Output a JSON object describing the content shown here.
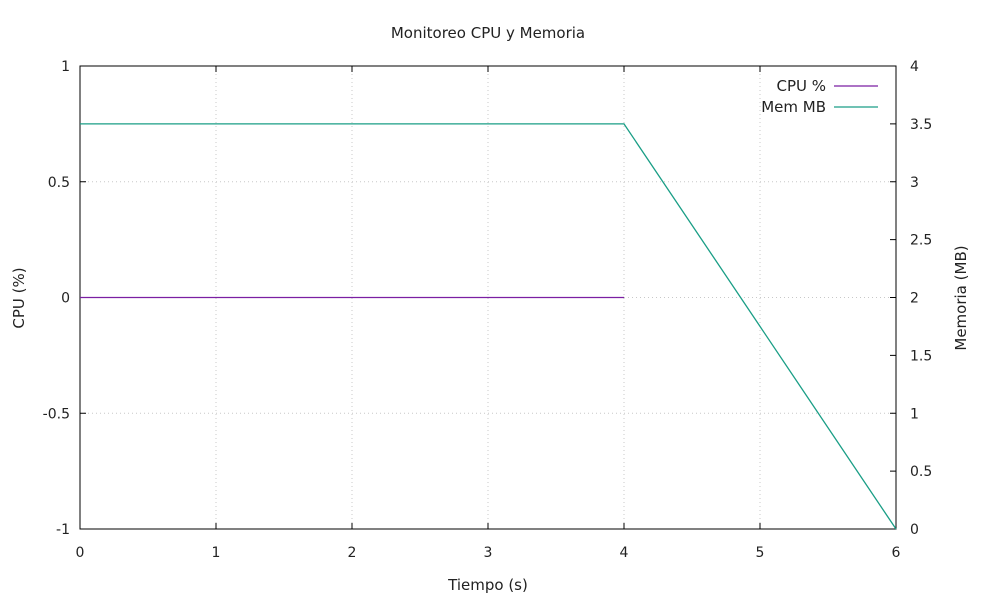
{
  "chart_data": {
    "type": "line",
    "title": "Monitoreo CPU y Memoria",
    "xlabel": "Tiempo (s)",
    "ylabel": "CPU (%)",
    "y2label": "Memoria (MB)",
    "xlim": [
      0,
      6
    ],
    "ylim": [
      -1,
      1
    ],
    "y2lim": [
      0,
      4
    ],
    "xticks": [
      "0",
      "1",
      "2",
      "3",
      "4",
      "5",
      "6"
    ],
    "yticks": [
      "-1",
      "-0.5",
      "0",
      "0.5",
      "1"
    ],
    "y2ticks": [
      "0",
      "0.5",
      "1",
      "1.5",
      "2",
      "2.5",
      "3",
      "3.5",
      "4"
    ],
    "grid": true,
    "legend_position": "top-right",
    "series": [
      {
        "name": "CPU %",
        "axis": "y",
        "color": "#7b1fa2",
        "x": [
          0,
          1,
          2,
          3,
          4
        ],
        "y": [
          0,
          0,
          0,
          0,
          0
        ]
      },
      {
        "name": "Mem MB",
        "axis": "y2",
        "color": "#1a9e86",
        "x": [
          0,
          1,
          2,
          3,
          4,
          5,
          6
        ],
        "y": [
          3.5,
          3.5,
          3.5,
          3.5,
          3.5,
          1.75,
          0
        ]
      }
    ]
  }
}
